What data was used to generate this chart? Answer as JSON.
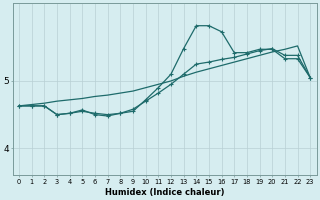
{
  "xlabel": "Humidex (Indice chaleur)",
  "bg_color": "#d6edf0",
  "line_color": "#1e6b6b",
  "grid_color": "#b8d0d4",
  "spine_color": "#7a9a9a",
  "x_ticks": [
    0,
    1,
    2,
    3,
    4,
    5,
    6,
    7,
    8,
    9,
    10,
    11,
    12,
    13,
    14,
    15,
    16,
    17,
    18,
    19,
    20,
    21,
    22,
    23
  ],
  "y_ticks": [
    4,
    5
  ],
  "ylim": [
    3.6,
    6.15
  ],
  "xlim": [
    -0.5,
    23.5
  ],
  "line1_x": [
    0,
    1,
    2,
    3,
    4,
    5,
    6,
    7,
    8,
    9,
    10,
    11,
    12,
    13,
    14,
    15,
    16,
    17,
    18,
    19,
    20,
    21,
    22,
    23
  ],
  "line1_y": [
    4.63,
    4.63,
    4.63,
    4.5,
    4.52,
    4.57,
    4.5,
    4.48,
    4.52,
    4.55,
    4.72,
    4.9,
    5.1,
    5.48,
    5.82,
    5.82,
    5.73,
    5.42,
    5.42,
    5.47,
    5.47,
    5.33,
    5.33,
    5.05
  ],
  "line2_x": [
    0,
    1,
    2,
    3,
    4,
    5,
    6,
    7,
    8,
    9,
    10,
    11,
    12,
    13,
    14,
    15,
    16,
    17,
    18,
    19,
    20,
    21,
    22,
    23
  ],
  "line2_y": [
    4.63,
    4.63,
    4.63,
    4.5,
    4.52,
    4.55,
    4.52,
    4.5,
    4.52,
    4.58,
    4.7,
    4.82,
    4.95,
    5.1,
    5.25,
    5.28,
    5.32,
    5.35,
    5.4,
    5.45,
    5.48,
    5.38,
    5.38,
    5.05
  ],
  "line3_x": [
    0,
    1,
    2,
    3,
    4,
    5,
    6,
    7,
    8,
    9,
    10,
    11,
    12,
    13,
    14,
    15,
    16,
    17,
    18,
    19,
    20,
    21,
    22,
    23
  ],
  "line3_y": [
    4.63,
    4.65,
    4.67,
    4.7,
    4.72,
    4.74,
    4.77,
    4.79,
    4.82,
    4.85,
    4.9,
    4.95,
    5.0,
    5.07,
    5.13,
    5.18,
    5.23,
    5.28,
    5.33,
    5.38,
    5.43,
    5.47,
    5.52,
    5.05
  ]
}
